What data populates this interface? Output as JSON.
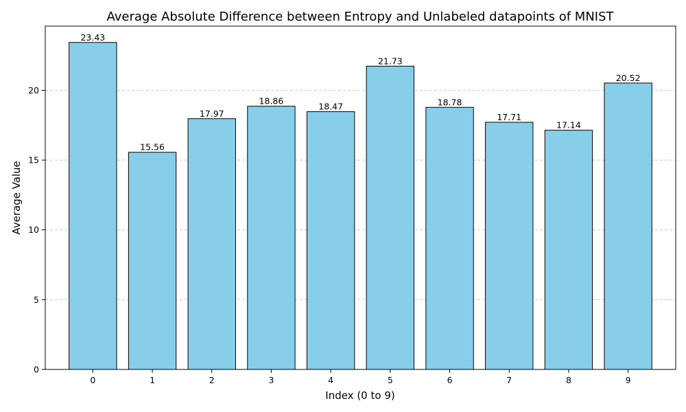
{
  "chart_data": {
    "type": "bar",
    "title": "Average Absolute Difference between Entropy and Unlabeled datapoints of MNIST",
    "xlabel": "Index (0 to 9)",
    "ylabel": "Average Value",
    "categories": [
      "0",
      "1",
      "2",
      "3",
      "4",
      "5",
      "6",
      "7",
      "8",
      "9"
    ],
    "values": [
      23.43,
      15.56,
      17.97,
      18.86,
      18.47,
      21.73,
      18.78,
      17.71,
      17.14,
      20.52
    ],
    "data_labels": [
      "23.43",
      "15.56",
      "17.97",
      "18.86",
      "18.47",
      "21.73",
      "18.78",
      "17.71",
      "17.14",
      "20.52"
    ],
    "ylim": [
      0,
      24.6
    ],
    "yticks": [
      0,
      5,
      10,
      15,
      20
    ],
    "ytick_labels": [
      "0",
      "5",
      "10",
      "15",
      "20"
    ],
    "grid": "y-dashed",
    "legend": "none",
    "colors": {
      "bar_fill": "#87ceeb",
      "bar_edge": "#000000",
      "grid": "#c8c8c8",
      "axis": "#000000"
    }
  }
}
